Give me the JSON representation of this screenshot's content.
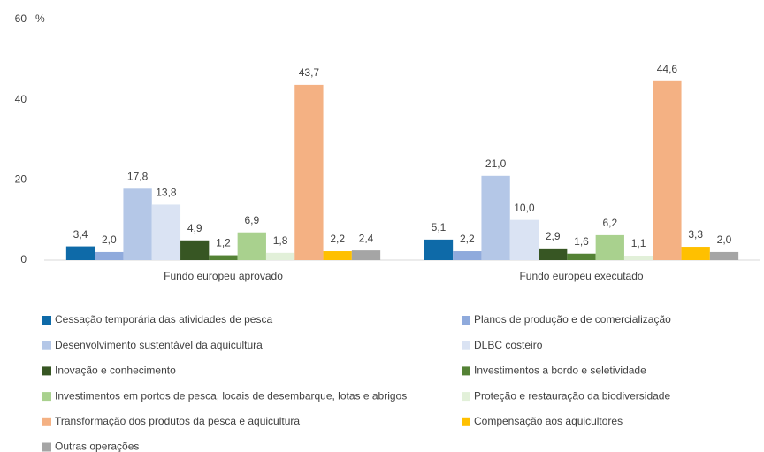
{
  "chart_data": {
    "type": "bar",
    "y_unit": "%",
    "categories": [
      "Fundo europeu aprovado",
      "Fundo europeu executado"
    ],
    "ylim": [
      0,
      60
    ],
    "yticks": [
      0,
      20,
      40,
      60
    ],
    "grid": false,
    "legend": "bottom",
    "series": [
      {
        "name": "Cessação temporária das atividades de pesca",
        "color": "#0e6aa8",
        "values": [
          3.4,
          5.1
        ],
        "value_labels": [
          "3,4",
          "5,1"
        ]
      },
      {
        "name": "Planos de produção e de comercialização",
        "color": "#8faadc",
        "values": [
          2.0,
          2.2
        ],
        "value_labels": [
          "2,0",
          "2,2"
        ]
      },
      {
        "name": "Desenvolvimento sustentável da aquicultura",
        "color": "#b4c7e7",
        "values": [
          17.8,
          21.0
        ],
        "value_labels": [
          "17,8",
          "21,0"
        ]
      },
      {
        "name": "DLBC costeiro",
        "color": "#dae3f3",
        "values": [
          13.8,
          10.0
        ],
        "value_labels": [
          "13,8",
          "10,0"
        ]
      },
      {
        "name": "Inovação e conhecimento",
        "color": "#375623",
        "values": [
          4.9,
          2.9
        ],
        "value_labels": [
          "4,9",
          "2,9"
        ]
      },
      {
        "name": "Investimentos a bordo e seletividade",
        "color": "#548235",
        "values": [
          1.2,
          1.6
        ],
        "value_labels": [
          "1,2",
          "1,6"
        ]
      },
      {
        "name": "Investimentos em portos de pesca, locais de desembarque, lotas e abrigos",
        "color": "#a9d18e",
        "values": [
          6.9,
          6.2
        ],
        "value_labels": [
          "6,9",
          "6,2"
        ]
      },
      {
        "name": "Proteção e restauração da biodiversidade",
        "color": "#e2f0d9",
        "values": [
          1.8,
          1.1
        ],
        "value_labels": [
          "1,8",
          "1,1"
        ]
      },
      {
        "name": "Transformação dos produtos da pesca e aquicultura",
        "color": "#f4b183",
        "values": [
          43.7,
          44.6
        ],
        "value_labels": [
          "43,7",
          "44,6"
        ]
      },
      {
        "name": "Compensação aos aquicultores",
        "color": "#ffc000",
        "values": [
          2.2,
          3.3
        ],
        "value_labels": [
          "2,2",
          "3,3"
        ]
      },
      {
        "name": "Outras operações",
        "color": "#a5a5a5",
        "values": [
          2.4,
          2.0
        ],
        "value_labels": [
          "2,4",
          "2,0"
        ]
      }
    ]
  }
}
